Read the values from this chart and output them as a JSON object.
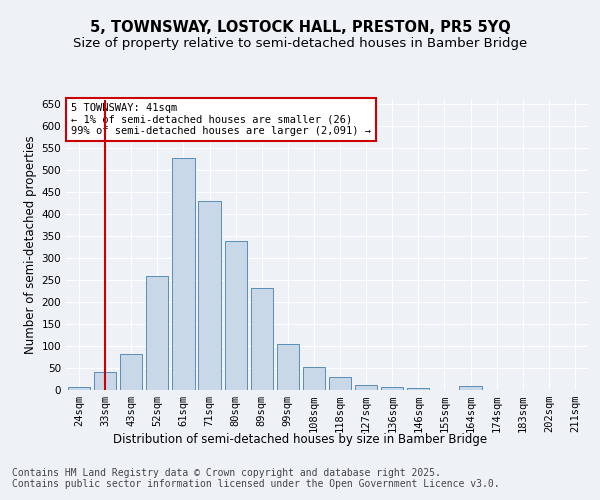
{
  "title_line1": "5, TOWNSWAY, LOSTOCK HALL, PRESTON, PR5 5YQ",
  "title_line2": "Size of property relative to semi-detached houses in Bamber Bridge",
  "xlabel": "Distribution of semi-detached houses by size in Bamber Bridge",
  "ylabel": "Number of semi-detached properties",
  "categories": [
    "24sqm",
    "33sqm",
    "43sqm",
    "52sqm",
    "61sqm",
    "71sqm",
    "80sqm",
    "89sqm",
    "99sqm",
    "108sqm",
    "118sqm",
    "127sqm",
    "136sqm",
    "146sqm",
    "155sqm",
    "164sqm",
    "174sqm",
    "183sqm",
    "202sqm",
    "211sqm"
  ],
  "values": [
    7,
    41,
    82,
    260,
    528,
    430,
    340,
    232,
    105,
    52,
    30,
    12,
    7,
    4,
    0,
    10,
    0,
    0,
    0,
    1
  ],
  "bar_color": "#c8d8e8",
  "bar_edge_color": "#5b8db8",
  "vline_x": 1,
  "vline_color": "#cc0000",
  "annotation_text": "5 TOWNSWAY: 41sqm\n← 1% of semi-detached houses are smaller (26)\n99% of semi-detached houses are larger (2,091) →",
  "annotation_box_color": "#ffffff",
  "annotation_box_edge": "#cc0000",
  "ylim": [
    0,
    660
  ],
  "yticks": [
    0,
    50,
    100,
    150,
    200,
    250,
    300,
    350,
    400,
    450,
    500,
    550,
    600,
    650
  ],
  "footer_text": "Contains HM Land Registry data © Crown copyright and database right 2025.\nContains public sector information licensed under the Open Government Licence v3.0.",
  "bg_color": "#eef2f7",
  "plot_bg_color": "#eef2f7",
  "grid_color": "#ffffff",
  "title_fontsize": 10.5,
  "subtitle_fontsize": 9.5,
  "axis_label_fontsize": 8.5,
  "tick_fontsize": 7.5,
  "annotation_fontsize": 7.5,
  "footer_fontsize": 7
}
